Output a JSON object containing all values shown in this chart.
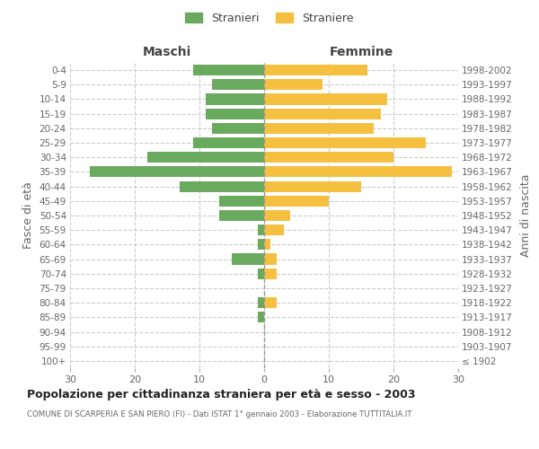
{
  "age_groups": [
    "100+",
    "95-99",
    "90-94",
    "85-89",
    "80-84",
    "75-79",
    "70-74",
    "65-69",
    "60-64",
    "55-59",
    "50-54",
    "45-49",
    "40-44",
    "35-39",
    "30-34",
    "25-29",
    "20-24",
    "15-19",
    "10-14",
    "5-9",
    "0-4"
  ],
  "birth_years": [
    "≤ 1902",
    "1903-1907",
    "1908-1912",
    "1913-1917",
    "1918-1922",
    "1923-1927",
    "1928-1932",
    "1933-1937",
    "1938-1942",
    "1943-1947",
    "1948-1952",
    "1953-1957",
    "1958-1962",
    "1963-1967",
    "1968-1972",
    "1973-1977",
    "1978-1982",
    "1983-1987",
    "1988-1992",
    "1993-1997",
    "1998-2002"
  ],
  "males": [
    0,
    0,
    0,
    1,
    1,
    0,
    1,
    5,
    1,
    1,
    7,
    7,
    13,
    27,
    18,
    11,
    8,
    9,
    9,
    8,
    11
  ],
  "females": [
    0,
    0,
    0,
    0,
    2,
    0,
    2,
    2,
    1,
    3,
    4,
    10,
    15,
    29,
    20,
    25,
    17,
    18,
    19,
    9,
    16
  ],
  "male_color": "#6aaa5e",
  "female_color": "#f5c040",
  "title": "Popolazione per cittadinanza straniera per età e sesso - 2003",
  "subtitle": "COMUNE DI SCARPERIA E SAN PIERO (FI) - Dati ISTAT 1° gennaio 2003 - Elaborazione TUTTITALIA.IT",
  "xlabel_left": "Maschi",
  "xlabel_right": "Femmine",
  "ylabel_left": "Fasce di età",
  "ylabel_right": "Anni di nascita",
  "legend_stranieri": "Stranieri",
  "legend_straniere": "Straniere",
  "xlim": 30,
  "background_color": "#ffffff",
  "grid_color": "#cccccc"
}
